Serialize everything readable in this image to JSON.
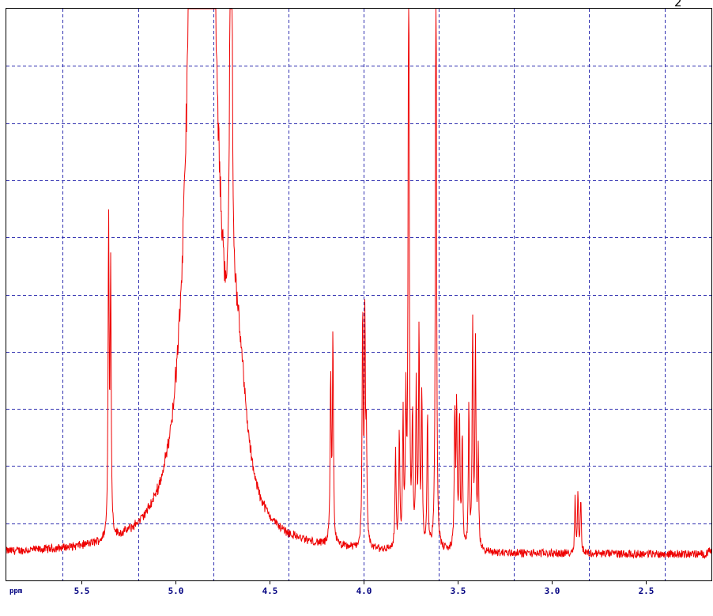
{
  "header": {
    "fragment": "2"
  },
  "colors": {
    "spectrum": "#ee0000",
    "grid": "#3030b0",
    "axis_text": "#000080",
    "frame": "#000000"
  },
  "chart_data": {
    "type": "line",
    "title": "",
    "xlabel": "ppm",
    "ylabel": "",
    "xlim": [
      5.9,
      2.15
    ],
    "x_reversed": true,
    "ylim": [
      0,
      100
    ],
    "grid": true,
    "xticks": [
      5.5,
      5.0,
      4.5,
      4.0,
      3.5,
      3.0,
      2.5
    ],
    "xtick_labels": [
      "5.5",
      "5.0",
      "4.5",
      "4.0",
      "3.5",
      "3.0",
      "2.5"
    ],
    "x_gridlines": [
      5.6,
      5.2,
      4.8,
      4.4,
      4.0,
      3.6,
      3.2,
      2.8,
      2.4
    ],
    "y_gridlines": [
      10,
      20,
      30,
      40,
      50,
      60,
      70,
      80,
      90
    ],
    "baseline": 4.5,
    "noise": 0.7,
    "broad_peaks": [
      {
        "ppm": 4.86,
        "height": 400,
        "width": 0.04
      },
      {
        "ppm": 4.67,
        "height": 25,
        "width": 0.05
      }
    ],
    "series": [
      {
        "peaks": [
          {
            "ppm": 5.356,
            "height": 55.5
          },
          {
            "ppm": 5.345,
            "height": 45.5
          },
          {
            "ppm": 4.705,
            "height": 300
          },
          {
            "ppm": 4.175,
            "height": 29.5
          },
          {
            "ppm": 4.163,
            "height": 36.5
          },
          {
            "ppm": 4.005,
            "height": 41.5
          },
          {
            "ppm": 3.993,
            "height": 38.5
          },
          {
            "ppm": 3.985,
            "height": 18
          },
          {
            "ppm": 3.83,
            "height": 17
          },
          {
            "ppm": 3.81,
            "height": 20
          },
          {
            "ppm": 3.79,
            "height": 23
          },
          {
            "ppm": 3.775,
            "height": 24
          },
          {
            "ppm": 3.76,
            "height": 120
          },
          {
            "ppm": 3.74,
            "height": 22
          },
          {
            "ppm": 3.72,
            "height": 28
          },
          {
            "ppm": 3.705,
            "height": 37.5
          },
          {
            "ppm": 3.69,
            "height": 27
          },
          {
            "ppm": 3.66,
            "height": 24
          },
          {
            "ppm": 3.615,
            "height": 120
          },
          {
            "ppm": 3.515,
            "height": 24
          },
          {
            "ppm": 3.505,
            "height": 25
          },
          {
            "ppm": 3.49,
            "height": 23.5
          },
          {
            "ppm": 3.475,
            "height": 20
          },
          {
            "ppm": 3.44,
            "height": 25
          },
          {
            "ppm": 3.42,
            "height": 39
          },
          {
            "ppm": 3.405,
            "height": 36
          },
          {
            "ppm": 3.39,
            "height": 17
          },
          {
            "ppm": 2.875,
            "height": 9.5
          },
          {
            "ppm": 2.86,
            "height": 10
          },
          {
            "ppm": 2.845,
            "height": 9.5
          },
          {
            "ppm": 2.16,
            "height": 1.6
          }
        ]
      }
    ]
  }
}
